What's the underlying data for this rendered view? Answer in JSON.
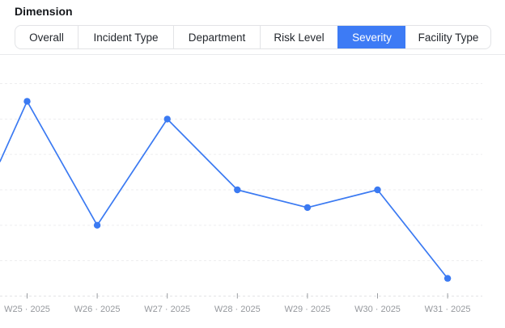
{
  "header": {
    "title": "Dimension"
  },
  "tabs": {
    "items": [
      {
        "label": "Overall",
        "active": false
      },
      {
        "label": "Incident Type",
        "active": false
      },
      {
        "label": "Department",
        "active": false
      },
      {
        "label": "Risk Level",
        "active": false
      },
      {
        "label": "Severity",
        "active": true
      },
      {
        "label": "Facility Type",
        "active": false
      }
    ],
    "active_bg": "#3d7bf5",
    "active_text": "#ffffff",
    "inactive_text": "#23272d"
  },
  "chart_data": {
    "type": "line",
    "categories": [
      "W25 · 2025",
      "W26 · 2025",
      "W27 · 2025",
      "W28 · 2025",
      "W29 · 2025",
      "W30 · 2025",
      "W31 · 2025"
    ],
    "series": [
      {
        "name": "Severity",
        "values": [
          11,
          4,
          10,
          6,
          5,
          6,
          1
        ]
      }
    ],
    "edge_entry_value": 7.6,
    "title": "",
    "xlabel": "",
    "ylabel": "",
    "ylim": [
      0,
      14
    ],
    "gridline_step": 2,
    "y_axis_labels": "none",
    "grid": "horizontal dashed",
    "legend": "none",
    "line_color": "#3b7af2",
    "point_color": "#3b7af2"
  }
}
